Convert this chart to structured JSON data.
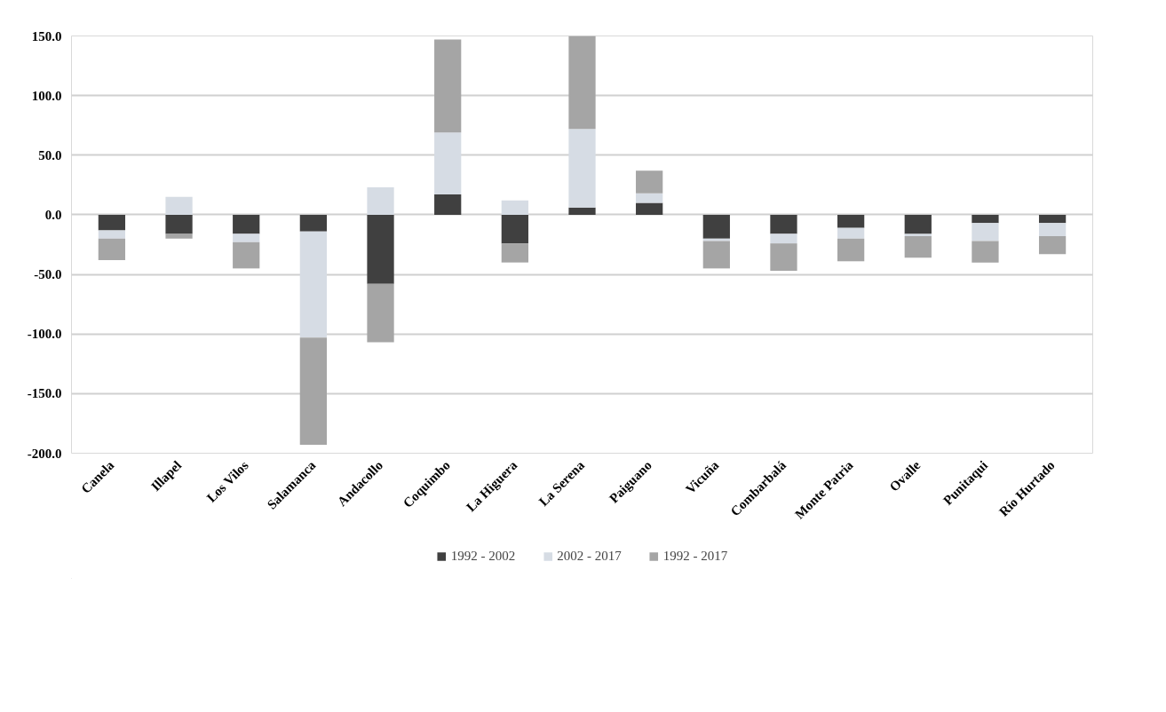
{
  "chart_data": {
    "type": "bar",
    "stacked": true,
    "categories": [
      "Canela",
      "Illapel",
      "Los Vilos",
      "Salamanca",
      "Andacollo",
      "Coquimbo",
      "La Higuera",
      "La Serena",
      "Paiguano",
      "Vicuña",
      "Combarbalá",
      "Monte Patria",
      "Ovalle",
      "Punitaqui",
      "Río Hurtado"
    ],
    "series": [
      {
        "name": "1992 - 2002",
        "color": "#404040",
        "values": [
          -13,
          -16,
          -16,
          -14,
          -58,
          17,
          -24,
          6,
          10,
          -20,
          -16,
          -11,
          -16,
          -7,
          -7
        ]
      },
      {
        "name": "2002 - 2017",
        "color": "#d6dce4",
        "values": [
          -7,
          15,
          -7,
          -89,
          23,
          52,
          12,
          66,
          8,
          -2,
          -8,
          -9,
          -2,
          -15,
          -11
        ]
      },
      {
        "name": "1992 - 2017",
        "color": "#a5a5a5",
        "values": [
          -18,
          -4,
          -22,
          -90,
          -49,
          78,
          -16,
          78,
          19,
          -23,
          -23,
          -19,
          -18,
          -18,
          -15
        ]
      }
    ],
    "ylim": [
      -200,
      150
    ],
    "yticks": [
      {
        "value": -200,
        "label": "-200.0"
      },
      {
        "value": -150,
        "label": "-150.0"
      },
      {
        "value": -100,
        "label": "-100.0"
      },
      {
        "value": -50,
        "label": "-50.0"
      },
      {
        "value": 0,
        "label": "0.0"
      },
      {
        "value": 50,
        "label": "50.0"
      },
      {
        "value": 100,
        "label": "100.0"
      },
      {
        "value": 150,
        "label": "150.0"
      }
    ],
    "grid": "y",
    "legend": "bottom"
  }
}
